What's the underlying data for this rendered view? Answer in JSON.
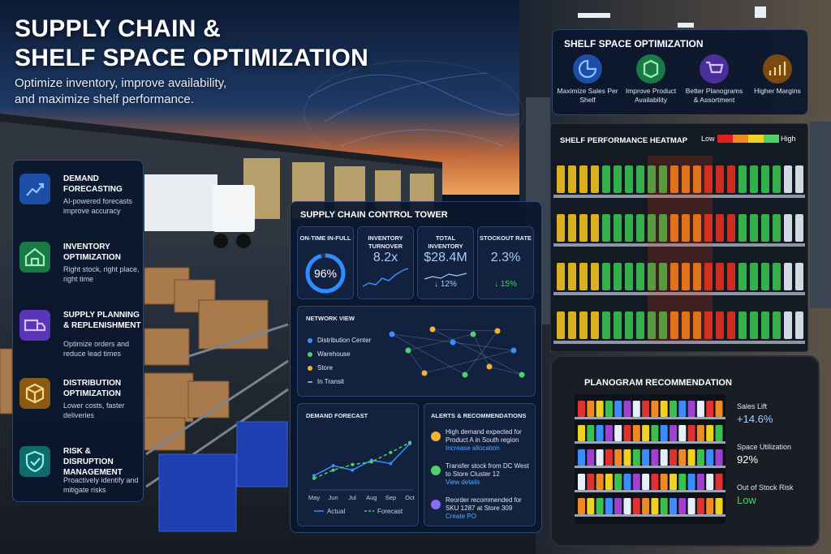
{
  "header": {
    "title_lines": [
      "SUPPLY CHAIN &",
      "SHELF SPACE OPTIMIZATION"
    ],
    "subtitle_lines": [
      "Optimize inventory, improve availability,",
      "and maximize shelf performance."
    ]
  },
  "features": [
    {
      "title": "DEMAND FORECASTING",
      "desc": "AI-powered forecasts improve accuracy"
    },
    {
      "title": "INVENTORY OPTIMIZATION",
      "desc": "Right stock, right place, right time"
    },
    {
      "title": "SUPPLY PLANNING & REPLENISHMENT",
      "desc": "Optimize orders and reduce lead times"
    },
    {
      "title": "DISTRIBUTION OPTIMIZATION",
      "desc": "Lower costs, faster deliveries"
    },
    {
      "title": "RISK & DISRUPTION MANAGEMENT",
      "desc": "Proactively identify and mitigate risks"
    }
  ],
  "shelf_space": {
    "title": "SHELF SPACE OPTIMIZATION",
    "items": [
      "Maximize Sales Per Shelf",
      "Improve Product Availability",
      "Better Planograms & Assortment",
      "Higher Margins"
    ]
  },
  "heatmap": {
    "title": "SHELF PERFORMANCE HEATMAP",
    "low": "Low",
    "high": "High"
  },
  "control_tower": {
    "title": "SUPPLY CHAIN CONTROL TOWER",
    "kpis": [
      {
        "label": "ON-TIME IN-FULL",
        "value": 96,
        "value_label": "96%"
      },
      {
        "label": "INVENTORY TURNOVER",
        "value": "8.2x"
      },
      {
        "label": "TOTAL INVENTORY",
        "value": "$28.4M",
        "change": "↓ 12%"
      },
      {
        "label": "STOCKOUT RATE",
        "value": "2.3%",
        "change": "↓ 15%"
      }
    ],
    "network": {
      "title": "NETWORK VIEW",
      "legend": [
        {
          "name": "Distribution Center",
          "color": "#3b8cff"
        },
        {
          "name": "Warehouse",
          "color": "#4fd06a"
        },
        {
          "name": "Store",
          "color": "#f2b233"
        },
        {
          "name": "In Transit",
          "color": "#8ea4c8"
        }
      ]
    },
    "demand_forecast": {
      "title": "DEMAND FORECAST",
      "months": [
        "May",
        "Jun",
        "Jul",
        "Aug",
        "Sep",
        "Oct"
      ],
      "ylim": [
        0,
        100
      ],
      "series": [
        {
          "name": "Actual",
          "color": "#3b8cff",
          "values": [
            20,
            38,
            30,
            48,
            42,
            78
          ]
        },
        {
          "name": "Forecast",
          "color": "#4fd06a",
          "values": [
            15,
            30,
            40,
            45,
            62,
            80
          ]
        }
      ]
    },
    "alerts": {
      "title": "ALERTS & RECOMMENDATIONS",
      "items": [
        {
          "text": "High demand expected for Product A in South region",
          "action": "Increase allocation"
        },
        {
          "text": "Transfer stock from DC West to Store Cluster 12",
          "action": "View details"
        },
        {
          "text": "Reorder recommended for SKU 1287 at Store 309",
          "action": "Create PO"
        }
      ]
    }
  },
  "planogram": {
    "title": "PLANOGRAM RECOMMENDATION",
    "metrics": [
      {
        "label": "Sales Lift",
        "value": "+14.6%"
      },
      {
        "label": "Space Utilization",
        "value": "92%"
      },
      {
        "label": "Out of Stock Risk",
        "value": "Low"
      }
    ]
  }
}
